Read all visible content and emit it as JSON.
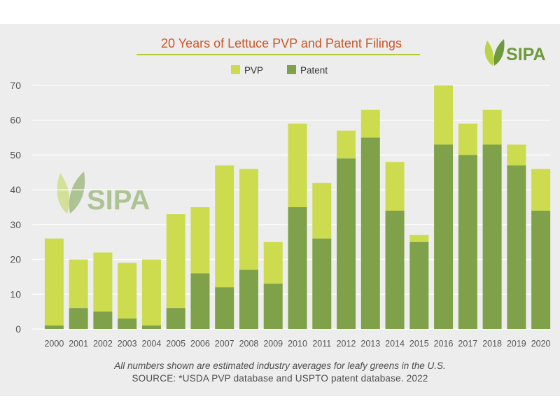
{
  "brand": {
    "name": "SIPA",
    "watermark": "SIPA",
    "leaf_light": "#b9d44a",
    "leaf_dark": "#6f9a3c",
    "text_color": "#6f9a3c"
  },
  "colors": {
    "pvp": "#cddc4f",
    "patent": "#7ea14a",
    "title": "#c8572a",
    "underline": "#b4c93a",
    "axis_text": "#555555",
    "grid": "#ffffff"
  },
  "chart_data": {
    "type": "bar",
    "stacked": true,
    "title": "20 Years of Lettuce PVP and Patent Filings",
    "xlabel": "",
    "ylabel": "",
    "ylim": [
      0,
      70
    ],
    "yticks": [
      0,
      10,
      20,
      30,
      40,
      50,
      60,
      70
    ],
    "legend_position": "top-center",
    "categories": [
      "2000",
      "2001",
      "2002",
      "2003",
      "2004",
      "2005",
      "2006",
      "2007",
      "2008",
      "2009",
      "2010",
      "2011",
      "2012",
      "2013",
      "2014",
      "2015",
      "2016",
      "2017",
      "2018",
      "2019",
      "2020"
    ],
    "series": [
      {
        "name": "Patent",
        "values": [
          1,
          6,
          5,
          3,
          1,
          6,
          16,
          12,
          17,
          13,
          35,
          26,
          49,
          55,
          34,
          25,
          53,
          50,
          53,
          47,
          34
        ]
      },
      {
        "name": "PVP",
        "values": [
          25,
          14,
          17,
          16,
          19,
          27,
          19,
          35,
          29,
          12,
          24,
          16,
          8,
          8,
          14,
          2,
          17,
          9,
          10,
          6,
          12
        ]
      }
    ],
    "legend": [
      {
        "name": "PVP"
      },
      {
        "name": "Patent"
      }
    ]
  },
  "footer": {
    "note": "All numbers shown are estimated industry averages for leafy greens in the U.S.",
    "source": "SOURCE:  *USDA PVP database and USPTO patent database. 2022"
  }
}
